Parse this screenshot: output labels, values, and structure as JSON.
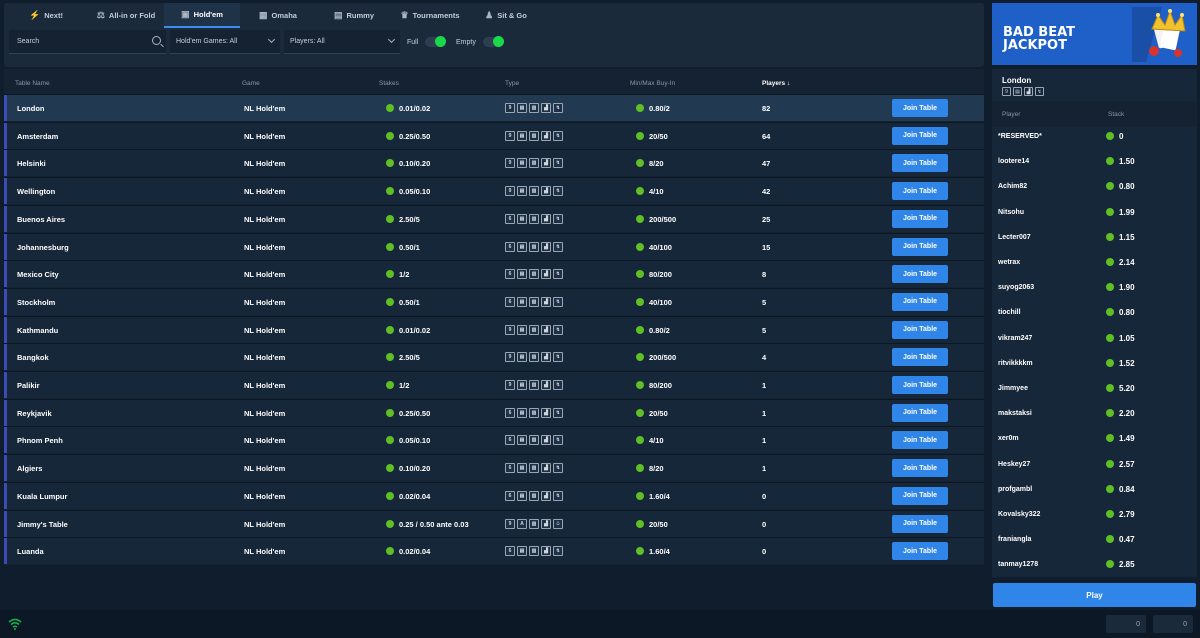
{
  "tabs": [
    {
      "label": "Next!",
      "icon": "lightning-icon",
      "active": false
    },
    {
      "label": "All-in or Fold",
      "icon": "all-in-icon",
      "active": false
    },
    {
      "label": "Hold'em",
      "icon": "holdem-icon",
      "active": true
    },
    {
      "label": "Omaha",
      "icon": "omaha-icon",
      "active": false
    },
    {
      "label": "Rummy",
      "icon": "rummy-icon",
      "active": false
    },
    {
      "label": "Tournaments",
      "icon": "trophy-icon",
      "active": false
    },
    {
      "label": "Sit & Go",
      "icon": "sit-go-icon",
      "active": false
    }
  ],
  "filters": {
    "search_placeholder": "Search",
    "games_select": "Hold'em Games: All",
    "players_select": "Players: All",
    "full_label": "Full",
    "empty_label": "Empty"
  },
  "table_headers": {
    "name": "Table Name",
    "game": "Game",
    "stakes": "Stakes",
    "type": "Type",
    "buyin": "Min/Max Buy-In",
    "players": "Players ↓"
  },
  "join_label": "Join Table",
  "tables": [
    {
      "name": "London",
      "game": "NL Hold'em",
      "stakes": "0.01/0.02",
      "buyin": "0.80/2",
      "players": "82"
    },
    {
      "name": "Amsterdam",
      "game": "NL Hold'em",
      "stakes": "0.25/0.50",
      "buyin": "20/50",
      "players": "64"
    },
    {
      "name": "Helsinki",
      "game": "NL Hold'em",
      "stakes": "0.10/0.20",
      "buyin": "8/20",
      "players": "47"
    },
    {
      "name": "Wellington",
      "game": "NL Hold'em",
      "stakes": "0.05/0.10",
      "buyin": "4/10",
      "players": "42"
    },
    {
      "name": "Buenos Aires",
      "game": "NL Hold'em",
      "stakes": "2.50/5",
      "buyin": "200/500",
      "players": "25"
    },
    {
      "name": "Johannesburg",
      "game": "NL Hold'em",
      "stakes": "0.50/1",
      "buyin": "40/100",
      "players": "15"
    },
    {
      "name": "Mexico City",
      "game": "NL Hold'em",
      "stakes": "1/2",
      "buyin": "80/200",
      "players": "8"
    },
    {
      "name": "Stockholm",
      "game": "NL Hold'em",
      "stakes": "0.50/1",
      "buyin": "40/100",
      "players": "5"
    },
    {
      "name": "Kathmandu",
      "game": "NL Hold'em",
      "stakes": "0.01/0.02",
      "buyin": "0.80/2",
      "players": "5"
    },
    {
      "name": "Bangkok",
      "game": "NL Hold'em",
      "stakes": "2.50/5",
      "buyin": "200/500",
      "players": "4"
    },
    {
      "name": "Palikir",
      "game": "NL Hold'em",
      "stakes": "1/2",
      "buyin": "80/200",
      "players": "1"
    },
    {
      "name": "Reykjavik",
      "game": "NL Hold'em",
      "stakes": "0.25/0.50",
      "buyin": "20/50",
      "players": "1"
    },
    {
      "name": "Phnom Penh",
      "game": "NL Hold'em",
      "stakes": "0.05/0.10",
      "buyin": "4/10",
      "players": "1"
    },
    {
      "name": "Algiers",
      "game": "NL Hold'em",
      "stakes": "0.10/0.20",
      "buyin": "8/20",
      "players": "1"
    },
    {
      "name": "Kuala Lumpur",
      "game": "NL Hold'em",
      "stakes": "0.02/0.04",
      "buyin": "1.60/4",
      "players": "0"
    },
    {
      "name": "Jimmy's Table",
      "game": "NL Hold'em",
      "stakes": "0.25 / 0.50 ante 0.03",
      "buyin": "20/50",
      "players": "0"
    },
    {
      "name": "Luanda",
      "game": "NL Hold'em",
      "stakes": "0.02/0.04",
      "buyin": "1.60/4",
      "players": "0"
    }
  ],
  "banner": {
    "line1": "BAD BEAT",
    "line2": "JACKPOT"
  },
  "side": {
    "table_name": "London",
    "player_header": "Player",
    "stack_header": "Stack",
    "players": [
      {
        "name": "*RESERVED*",
        "stack": "0"
      },
      {
        "name": "lootere14",
        "stack": "1.50"
      },
      {
        "name": "Achim82",
        "stack": "0.80"
      },
      {
        "name": "Nitsohu",
        "stack": "1.99"
      },
      {
        "name": "Lecter007",
        "stack": "1.15"
      },
      {
        "name": "wetrax",
        "stack": "2.14"
      },
      {
        "name": "suyog2063",
        "stack": "1.90"
      },
      {
        "name": "tiochill",
        "stack": "0.80"
      },
      {
        "name": "vikram247",
        "stack": "1.05"
      },
      {
        "name": "ritvikkkkm",
        "stack": "1.52"
      },
      {
        "name": "Jimmyee",
        "stack": "5.20"
      },
      {
        "name": "makstaksi",
        "stack": "2.20"
      },
      {
        "name": "xer0m",
        "stack": "1.49"
      },
      {
        "name": "Heskey27",
        "stack": "2.57"
      },
      {
        "name": "profgambl",
        "stack": "0.84"
      },
      {
        "name": "Kovalsky322",
        "stack": "2.79"
      },
      {
        "name": "franiangla",
        "stack": "0.47"
      },
      {
        "name": "tanmay1278",
        "stack": "2.85"
      }
    ]
  },
  "play_label": "Play",
  "footer": {
    "box1": "0",
    "box2": "0"
  }
}
